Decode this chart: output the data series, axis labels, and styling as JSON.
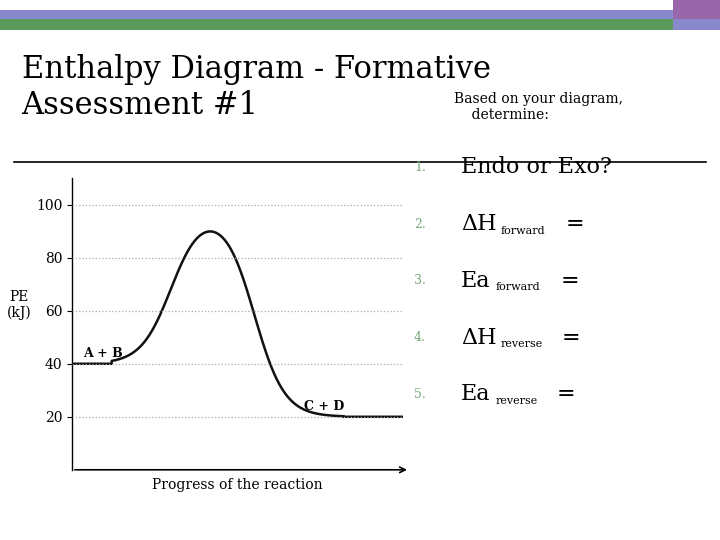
{
  "title": "Enthalpy Diagram - Formative\nAssessment #1",
  "title_fontsize": 22,
  "bg_color": "#ffffff",
  "header_bar1_color": "#8888cc",
  "header_bar2_color": "#5a9a5a",
  "header_bar3_color": "#9966aa",
  "header_bar4_color": "#8888cc",
  "xlabel": "Progress of the reaction",
  "ylabel_line1": "PE",
  "ylabel_line2": "(kJ)",
  "ylim": [
    0,
    110
  ],
  "xlim": [
    0,
    10
  ],
  "yticks": [
    20,
    40,
    60,
    80,
    100
  ],
  "curve_color": "#111111",
  "curve_linewidth": 1.8,
  "reactant_label": "A + B",
  "reactant_y": 40,
  "product_label": "C + D",
  "product_y": 20,
  "peak_y": 98,
  "list_text_color": "#7aaa7a",
  "list_items": [
    {
      "num": "1.",
      "text_main": "Endo or Exo?",
      "sub": ""
    },
    {
      "num": "2.",
      "text_main": "ΔH",
      "sub": "forward",
      "suffix": " ="
    },
    {
      "num": "3.",
      "text_main": "Ea",
      "sub": "forward",
      "suffix": " ="
    },
    {
      "num": "4.",
      "text_main": "ΔH",
      "sub": "reverse",
      "suffix": " ="
    },
    {
      "num": "5.",
      "text_main": "Ea",
      "sub": "reverse",
      "suffix": " ="
    }
  ],
  "based_on_text": "Based on your diagram,\n    determine:",
  "grid_color": "#aaaaaa",
  "grid_linestyle": "dotted"
}
